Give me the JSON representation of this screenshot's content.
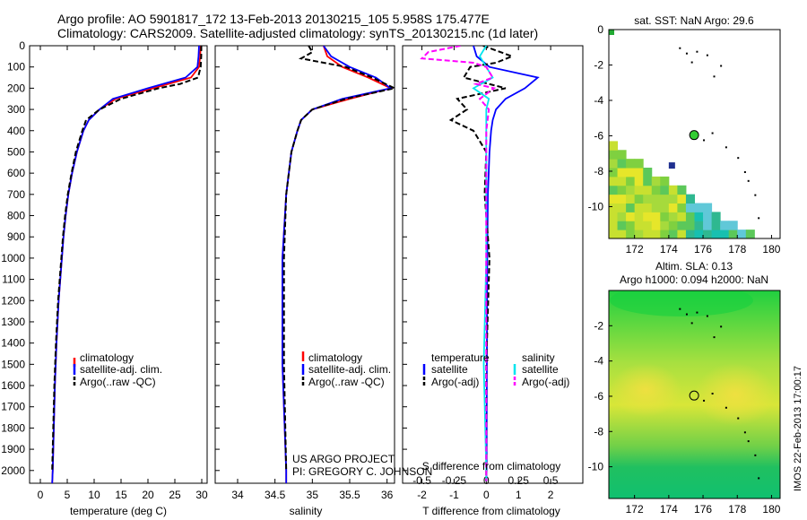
{
  "figure": {
    "title_line1": "Argo profile: AO 5901817_172 13-Feb-2013 20130215_105 5.958S 175.477E",
    "title_line2": "Climatology: CARS2009. Satellite-adjusted climatology: synTS_20130215.nc (1d later)",
    "project_line1": "US ARGO PROJECT",
    "project_line2": "PI: GREGORY C. JOHNSON",
    "side_stamp": "IMOS 22-Feb-2013 17:00:17"
  },
  "colors": {
    "climatology": "#ff0000",
    "satellite": "#0000ff",
    "argo": "#000000",
    "sal_satellite": "#00e5ee",
    "sal_argo": "#ff00ff"
  },
  "chart_data": [
    {
      "id": "temperature",
      "type": "line",
      "xlabel": "temperature (deg C)",
      "xlim": [
        -2,
        31
      ],
      "xticks": [
        0,
        5,
        10,
        15,
        20,
        25,
        30
      ],
      "ylim": [
        2060,
        0
      ],
      "yticks": [
        0,
        100,
        200,
        300,
        400,
        500,
        600,
        700,
        800,
        900,
        1000,
        1100,
        1200,
        1300,
        1400,
        1500,
        1600,
        1700,
        1800,
        1900,
        2000
      ],
      "legend": [
        "climatology",
        "satellite-adj. clim.",
        "Argo(..raw -QC)"
      ],
      "series": [
        {
          "name": "climatology",
          "depth": [
            0,
            50,
            100,
            150,
            200,
            250,
            300,
            350,
            400,
            500,
            600,
            700,
            800,
            900,
            1000,
            1200,
            1400,
            1600,
            1800,
            2000,
            2060
          ],
          "values": [
            29.8,
            29.7,
            29.5,
            28,
            21,
            14,
            11,
            9,
            8,
            6.8,
            5.9,
            5.2,
            4.7,
            4.3,
            4,
            3.4,
            3,
            2.7,
            2.5,
            2.3,
            2.2
          ]
        },
        {
          "name": "satellite",
          "depth": [
            0,
            50,
            100,
            150,
            200,
            250,
            300,
            350,
            400,
            500,
            600,
            700,
            800,
            900,
            1000,
            1200,
            1400,
            1600,
            1800,
            2000,
            2060
          ],
          "values": [
            29.5,
            29.4,
            29.2,
            27,
            20,
            13.5,
            11,
            9,
            8,
            6.8,
            5.9,
            5.2,
            4.7,
            4.3,
            4,
            3.4,
            3,
            2.7,
            2.5,
            2.3,
            2.2
          ]
        },
        {
          "name": "argo",
          "depth": [
            0,
            50,
            100,
            150,
            180,
            200,
            250,
            300,
            350,
            400,
            500,
            600,
            700,
            800,
            900,
            1000,
            1200,
            1400,
            1600,
            1800,
            2000
          ],
          "values": [
            29.9,
            29.9,
            29.8,
            29.3,
            26,
            22,
            15,
            11,
            8.5,
            7.8,
            6.6,
            5.8,
            5.1,
            4.6,
            4.2,
            3.9,
            3.3,
            2.9,
            2.6,
            2.4,
            2.2
          ]
        }
      ]
    },
    {
      "id": "salinity",
      "type": "line",
      "xlabel": "salinity",
      "xlim": [
        33.7,
        36.1
      ],
      "xticks": [
        34,
        34.5,
        35,
        35.5,
        36
      ],
      "ylim": [
        2060,
        0
      ],
      "legend": [
        "climatology",
        "satellite-adj. clim.",
        "Argo(..raw -QC)"
      ],
      "series": [
        {
          "name": "climatology",
          "depth": [
            0,
            50,
            100,
            150,
            200,
            250,
            300,
            350,
            400,
            500,
            700,
            1000,
            1500,
            2000,
            2060
          ],
          "values": [
            35.15,
            35.2,
            35.4,
            35.75,
            36.05,
            35.5,
            35.0,
            34.85,
            34.8,
            34.72,
            34.65,
            34.6,
            34.6,
            34.65,
            34.65
          ]
        },
        {
          "name": "satellite",
          "depth": [
            0,
            50,
            100,
            150,
            200,
            250,
            300,
            350,
            400,
            500,
            700,
            1000,
            1500,
            2000,
            2060
          ],
          "values": [
            35.15,
            35.25,
            35.5,
            35.85,
            36.05,
            35.4,
            35.0,
            34.85,
            34.8,
            34.72,
            34.65,
            34.6,
            34.6,
            34.65,
            34.65
          ]
        },
        {
          "name": "argo",
          "depth": [
            0,
            30,
            60,
            100,
            150,
            200,
            250,
            300,
            350,
            400,
            500,
            700,
            1000,
            1500,
            2000
          ],
          "values": [
            34.95,
            35.0,
            34.85,
            35.45,
            35.8,
            36.1,
            35.45,
            35.0,
            34.85,
            34.8,
            34.72,
            34.65,
            34.62,
            34.62,
            34.65
          ]
        }
      ]
    },
    {
      "id": "differences",
      "type": "line",
      "xlabel": "T difference from climatology",
      "xlabel_top": "S difference from climatology",
      "xlim": [
        -2.6,
        3
      ],
      "xticks": [
        -2,
        -1,
        0,
        1,
        2
      ],
      "xticks_top": [
        "-0.5",
        "-0.25",
        "0",
        "0.25",
        "0.5"
      ],
      "ylim": [
        2060,
        0
      ],
      "legend_left_title": "temperature",
      "legend_right_title": "salinity",
      "legend": [
        "satellite",
        "Argo(-adj)",
        "satellite",
        "Argo(-adj)"
      ],
      "series": [
        {
          "name": "T satellite",
          "depth": [
            0,
            50,
            100,
            150,
            200,
            250,
            300,
            350,
            400,
            500,
            700,
            1000,
            1500,
            2000,
            2050
          ],
          "values": [
            -0.4,
            -0.3,
            0.1,
            1.6,
            1.2,
            0.6,
            0.3,
            0.2,
            0.15,
            0.1,
            0.05,
            0.03,
            0.02,
            0.01,
            0
          ]
        },
        {
          "name": "T argo",
          "depth": [
            0,
            50,
            80,
            100,
            150,
            200,
            250,
            300,
            350,
            400,
            500,
            700,
            1000,
            1500,
            2000,
            2050
          ],
          "values": [
            -0.1,
            0.8,
            0.3,
            -0.5,
            -0.7,
            0.6,
            -0.9,
            -0.6,
            -1.1,
            -0.4,
            0.0,
            -0.05,
            0.1,
            0.0,
            0.0,
            0.0
          ]
        },
        {
          "name": "S satellite",
          "depth": [
            0,
            50,
            100,
            150,
            200,
            250,
            300,
            400,
            600,
            1000,
            1500,
            2000,
            2050
          ],
          "values": [
            0.0,
            -0.05,
            0.0,
            0.05,
            -0.1,
            0.02,
            0.0,
            0.0,
            0.0,
            0.0,
            -0.02,
            0.0,
            0.0
          ]
        },
        {
          "name": "S argo",
          "depth": [
            0,
            30,
            60,
            80,
            100,
            150,
            180,
            200,
            250,
            300,
            400,
            600,
            1000,
            1500,
            2000,
            2050
          ],
          "values": [
            -0.2,
            -0.45,
            -0.5,
            -0.1,
            0.0,
            0.05,
            -0.08,
            0.06,
            -0.05,
            0.02,
            0.0,
            0.0,
            0.0,
            0.0,
            0.0,
            0.0
          ]
        }
      ]
    },
    {
      "id": "sst-map",
      "type": "heatmap",
      "title": "sat. SST: NaN Argo: 29.6",
      "xlim": [
        170.5,
        180.5
      ],
      "ylim": [
        -11.8,
        0
      ],
      "xticks": [
        172,
        174,
        176,
        178,
        180
      ],
      "yticks": [
        0,
        -2,
        -4,
        -6,
        -8,
        -10
      ],
      "argo_position": [
        175.48,
        -5.96
      ]
    },
    {
      "id": "sla-map",
      "type": "heatmap",
      "title_line1": "Altim. SLA: 0.13",
      "title_line2": "Argo h1000: 0.094 h2000: NaN",
      "xlim": [
        170.5,
        180.5
      ],
      "ylim": [
        -11.8,
        0
      ],
      "xticks": [
        172,
        174,
        176,
        178,
        180
      ],
      "yticks": [
        -2,
        -4,
        -6,
        -8,
        -10
      ],
      "argo_position": [
        175.48,
        -5.96
      ]
    }
  ]
}
